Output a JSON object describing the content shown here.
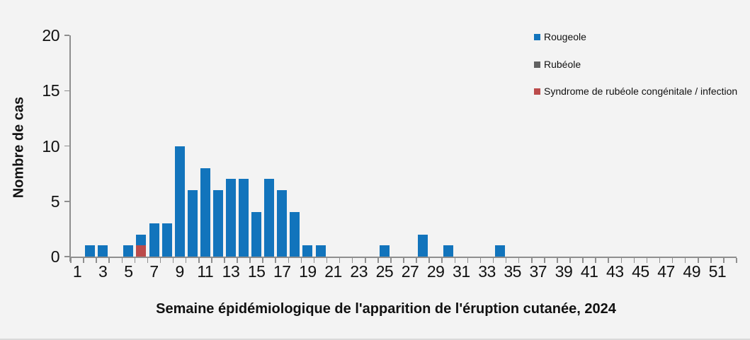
{
  "chart_data": {
    "type": "bar",
    "stacked": true,
    "title": "",
    "xlabel": "Semaine épidémiologique de l'apparition de l'éruption cutanée, 2024",
    "ylabel": "Nombre de cas",
    "categories": [
      1,
      2,
      3,
      4,
      5,
      6,
      7,
      8,
      9,
      10,
      11,
      12,
      13,
      14,
      15,
      16,
      17,
      18,
      19,
      20,
      21,
      22,
      23,
      24,
      25,
      26,
      27,
      28,
      29,
      30,
      31,
      32,
      33,
      34,
      35,
      36,
      37,
      38,
      39,
      40,
      41,
      42,
      43,
      44,
      45,
      46,
      47,
      48,
      49,
      50,
      51,
      52
    ],
    "x_tick_labels": [
      "1",
      "3",
      "5",
      "7",
      "9",
      "11",
      "13",
      "15",
      "17",
      "19",
      "21",
      "23",
      "25",
      "27",
      "29",
      "31",
      "33",
      "35",
      "37",
      "39",
      "41",
      "43",
      "45",
      "47",
      "49",
      "51"
    ],
    "y_ticks": [
      0,
      5,
      10,
      15,
      20
    ],
    "ylim": [
      0,
      20
    ],
    "grid": false,
    "legend_position": "top-right",
    "series": [
      {
        "name": "Rougeole",
        "color": "#1274bc",
        "values": [
          0,
          1,
          1,
          0,
          1,
          1,
          3,
          3,
          10,
          6,
          8,
          6,
          7,
          7,
          4,
          7,
          6,
          4,
          1,
          1,
          0,
          0,
          0,
          0,
          1,
          0,
          0,
          2,
          0,
          1,
          0,
          0,
          0,
          1,
          0,
          0,
          0,
          0,
          0,
          0,
          0,
          0,
          0,
          0,
          0,
          0,
          0,
          0,
          0,
          0,
          0,
          0
        ]
      },
      {
        "name": "Rubéole",
        "color": "#616161",
        "values": [
          0,
          0,
          0,
          0,
          0,
          0,
          0,
          0,
          0,
          0,
          0,
          0,
          0,
          0,
          0,
          0,
          0,
          0,
          0,
          0,
          0,
          0,
          0,
          0,
          0,
          0,
          0,
          0,
          0,
          0,
          0,
          0,
          0,
          0,
          0,
          0,
          0,
          0,
          0,
          0,
          0,
          0,
          0,
          0,
          0,
          0,
          0,
          0,
          0,
          0,
          0,
          0
        ]
      },
      {
        "name": "Syndrome de rubéole congénitale / infection",
        "color": "#bb4b4b",
        "values": [
          0,
          0,
          0,
          0,
          0,
          1,
          0,
          0,
          0,
          0,
          0,
          0,
          0,
          0,
          0,
          0,
          0,
          0,
          0,
          0,
          0,
          0,
          0,
          0,
          0,
          0,
          0,
          0,
          0,
          0,
          0,
          0,
          0,
          0,
          0,
          0,
          0,
          0,
          0,
          0,
          0,
          0,
          0,
          0,
          0,
          0,
          0,
          0,
          0,
          0,
          0,
          0
        ]
      }
    ]
  }
}
